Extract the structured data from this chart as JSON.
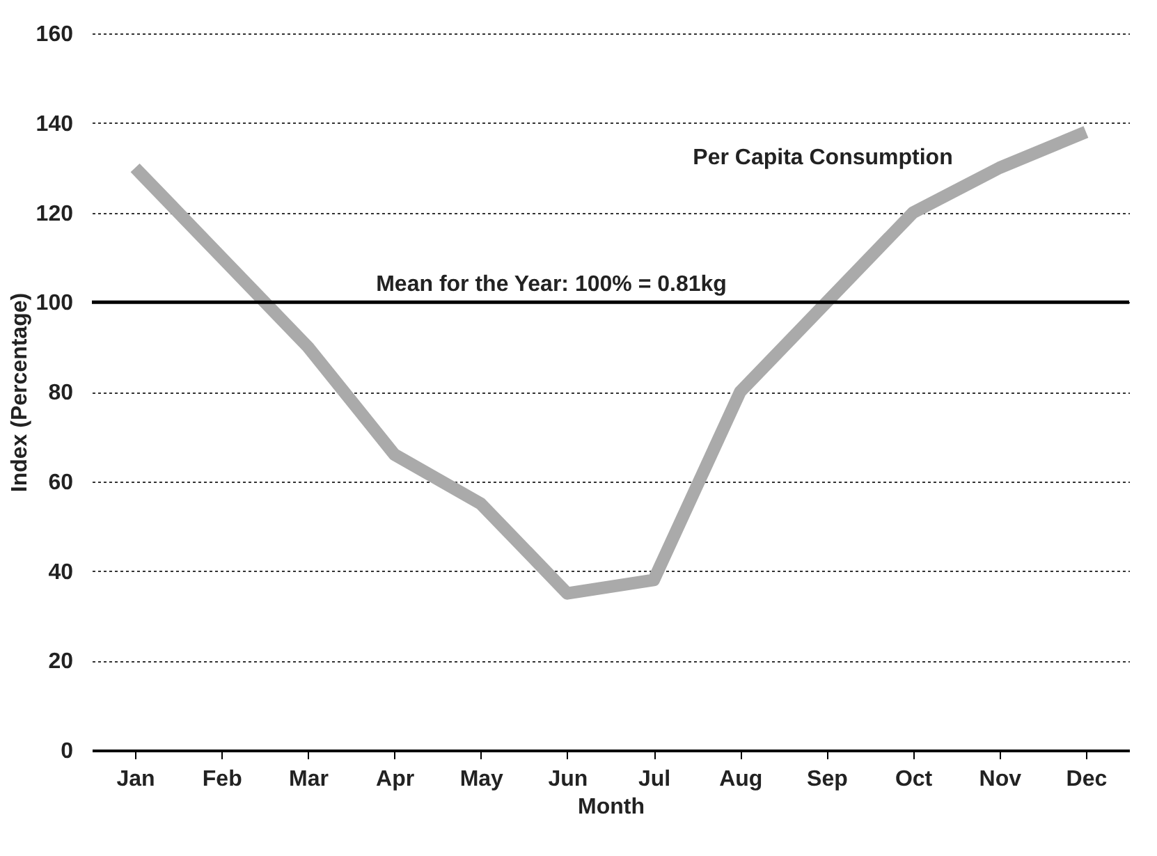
{
  "chart_data": {
    "type": "line",
    "xlabel": "Month",
    "ylabel": "Index (Percentage)",
    "categories": [
      "Jan",
      "Feb",
      "Mar",
      "Apr",
      "May",
      "Jun",
      "Jul",
      "Aug",
      "Sep",
      "Oct",
      "Nov",
      "Dec"
    ],
    "annotations": [
      "Per Capita Consumption"
    ],
    "series": [
      {
        "color": "#aaaaaa",
        "values": [
          130,
          110,
          90,
          66,
          55,
          35,
          38,
          80,
          100,
          120,
          130,
          138
        ]
      }
    ],
    "ylim": [
      0,
      160
    ],
    "yticks": [
      0,
      20,
      40,
      60,
      80,
      100,
      120,
      140,
      160
    ],
    "grid": "y",
    "marker": "none",
    "line_style": "solid",
    "ref_lines": [
      {
        "axis": "y",
        "value": 100,
        "label": "Mean for the Year: 100% = 0.81kg",
        "color": "#000000"
      }
    ]
  }
}
